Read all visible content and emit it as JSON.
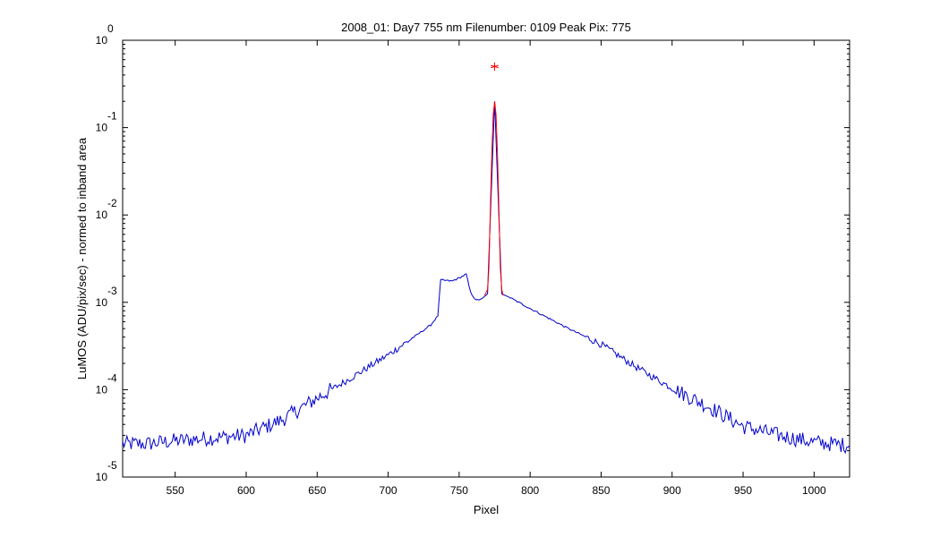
{
  "chart_data": {
    "type": "line",
    "title": "2008_01: Day7  755 nm  Filenumber: 0109 Peak Pix: 775",
    "xlabel": "Pixel",
    "ylabel": "LuMOS (ADU/pix/sec) - normed to inband area",
    "xlim": [
      513,
      1025
    ],
    "ylim": [
      1e-05,
      1
    ],
    "yscale": "log",
    "grid": false,
    "x_ticks": [
      550,
      600,
      650,
      700,
      750,
      800,
      850,
      900,
      950,
      1000
    ],
    "y_ticks": [
      {
        "base": "10",
        "exp": "-5",
        "value": 1e-05
      },
      {
        "base": "10",
        "exp": "-4",
        "value": 0.0001
      },
      {
        "base": "10",
        "exp": "-3",
        "value": 0.001
      },
      {
        "base": "10",
        "exp": "-2",
        "value": 0.01
      },
      {
        "base": "10",
        "exp": "-1",
        "value": 0.1
      },
      {
        "base": "10",
        "exp": "0",
        "value": 1
      }
    ],
    "series": [
      {
        "color": "#0000cc",
        "style": "solid",
        "points": [
          [
            513,
            2.4e-05
          ],
          [
            530,
            2.4e-05
          ],
          [
            550,
            2.6e-05
          ],
          [
            575,
            2.8e-05
          ],
          [
            600,
            3e-05
          ],
          [
            625,
            4.5e-05
          ],
          [
            650,
            8e-05
          ],
          [
            675,
            0.00014
          ],
          [
            700,
            0.00025
          ],
          [
            720,
            0.00042
          ],
          [
            730,
            0.00055
          ],
          [
            735,
            0.0007
          ],
          [
            737,
            0.0018
          ],
          [
            745,
            0.00175
          ],
          [
            750,
            0.0019
          ],
          [
            755,
            0.0021
          ],
          [
            758,
            0.0013
          ],
          [
            762,
            0.00105
          ],
          [
            766,
            0.0011
          ],
          [
            770,
            0.00125
          ],
          [
            775,
            0.2
          ],
          [
            780,
            0.00125
          ],
          [
            785,
            0.00115
          ],
          [
            800,
            0.00085
          ],
          [
            825,
            0.00052
          ],
          [
            850,
            0.00033
          ],
          [
            875,
            0.00018
          ],
          [
            900,
            0.000104
          ],
          [
            925,
            6.5e-05
          ],
          [
            950,
            3.8e-05
          ],
          [
            975,
            3e-05
          ],
          [
            1000,
            2.5e-05
          ],
          [
            1025,
            2.3e-05
          ]
        ]
      },
      {
        "color": "#ff0000",
        "style": "solid",
        "points": [
          [
            768,
            0.0012
          ],
          [
            770,
            0.0014
          ],
          [
            771,
            0.0025
          ],
          [
            772,
            0.012
          ],
          [
            773,
            0.05
          ],
          [
            774,
            0.14
          ],
          [
            775,
            0.2
          ],
          [
            776,
            0.14
          ],
          [
            777,
            0.05
          ],
          [
            778,
            0.012
          ],
          [
            779,
            0.0025
          ],
          [
            780,
            0.0014
          ],
          [
            781,
            0.0012
          ]
        ]
      }
    ],
    "peak_marker": {
      "x": 775,
      "y": 0.5,
      "symbol": "*",
      "color": "#ff0000"
    }
  }
}
